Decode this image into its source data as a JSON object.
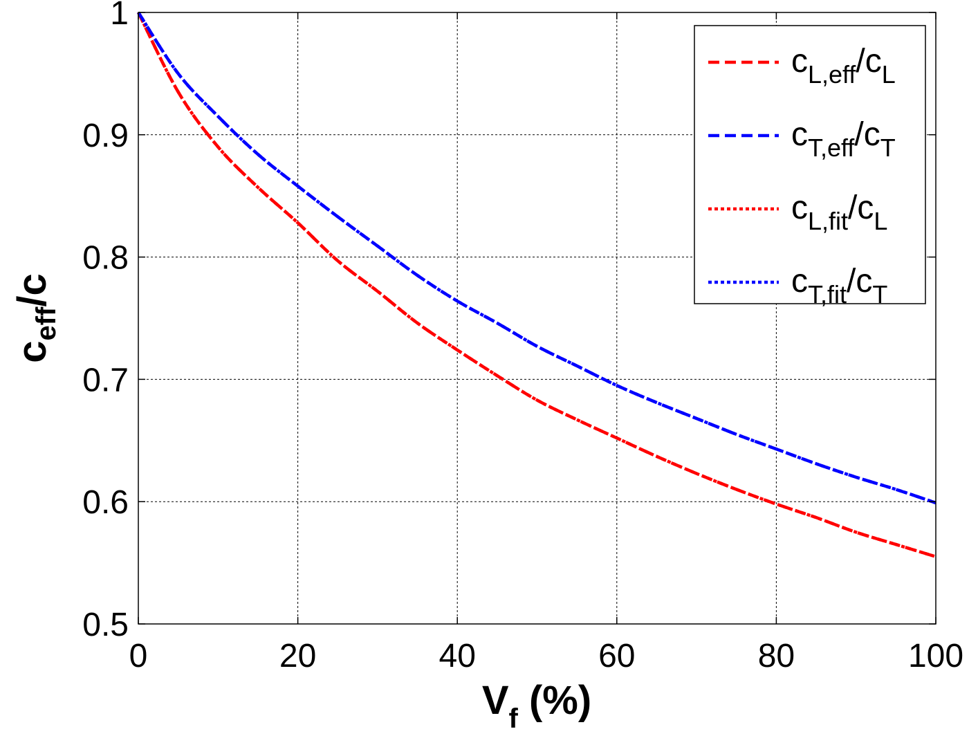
{
  "chart_data": {
    "type": "line",
    "xlabel": {
      "main": "V",
      "sub": "f",
      "rest": " (%)"
    },
    "ylabel": {
      "main": "c",
      "sub": "eff",
      "rest": "/c"
    },
    "xlim": [
      0,
      100
    ],
    "ylim": [
      0.5,
      1.0
    ],
    "x_ticks": [
      0,
      20,
      40,
      60,
      80,
      100
    ],
    "y_ticks": [
      0.5,
      0.6,
      0.7,
      0.8,
      0.9,
      1.0
    ],
    "x_tick_labels": [
      "0",
      "20",
      "40",
      "60",
      "80",
      "100"
    ],
    "y_tick_labels": [
      "0.5",
      "0.6",
      "0.7",
      "0.8",
      "0.9",
      "1"
    ],
    "grid": true,
    "legend_position": "top-right",
    "x": [
      0,
      5,
      10,
      15,
      20,
      25,
      30,
      35,
      40,
      45,
      50,
      55,
      60,
      65,
      70,
      75,
      80,
      85,
      90,
      95,
      100
    ],
    "series": [
      {
        "name": "c_L,eff/c_L",
        "legend": {
          "main": "c",
          "sub": "L,eff",
          "mid": "/c",
          "sub2": "L"
        },
        "color": "#ff0000",
        "style": "dashed",
        "values": [
          1.0,
          0.935,
          0.89,
          0.857,
          0.828,
          0.797,
          0.772,
          0.746,
          0.724,
          0.703,
          0.683,
          0.667,
          0.652,
          0.637,
          0.623,
          0.61,
          0.598,
          0.587,
          0.575,
          0.565,
          0.555
        ]
      },
      {
        "name": "c_T,eff/c_T",
        "legend": {
          "main": "c",
          "sub": "T,eff",
          "mid": "/c",
          "sub2": "T"
        },
        "color": "#0000ff",
        "style": "dashed",
        "values": [
          1.0,
          0.95,
          0.915,
          0.884,
          0.858,
          0.833,
          0.809,
          0.785,
          0.764,
          0.746,
          0.727,
          0.711,
          0.695,
          0.681,
          0.668,
          0.655,
          0.643,
          0.631,
          0.62,
          0.61,
          0.599
        ]
      },
      {
        "name": "c_L,fit/c_L",
        "legend": {
          "main": "c",
          "sub": "L,fit",
          "mid": "/c",
          "sub2": "L"
        },
        "color": "#ff0000",
        "style": "dotted",
        "values": [
          1.0,
          0.935,
          0.89,
          0.857,
          0.828,
          0.797,
          0.772,
          0.746,
          0.724,
          0.703,
          0.683,
          0.667,
          0.652,
          0.637,
          0.623,
          0.61,
          0.598,
          0.587,
          0.575,
          0.565,
          0.555
        ]
      },
      {
        "name": "c_T,fit/c_T",
        "legend": {
          "main": "c",
          "sub": "T,fit",
          "mid": "/c",
          "sub2": "T"
        },
        "color": "#0000ff",
        "style": "dotted",
        "values": [
          1.0,
          0.95,
          0.915,
          0.884,
          0.858,
          0.833,
          0.809,
          0.785,
          0.764,
          0.746,
          0.727,
          0.711,
          0.695,
          0.681,
          0.668,
          0.655,
          0.643,
          0.631,
          0.62,
          0.61,
          0.599
        ]
      }
    ]
  }
}
